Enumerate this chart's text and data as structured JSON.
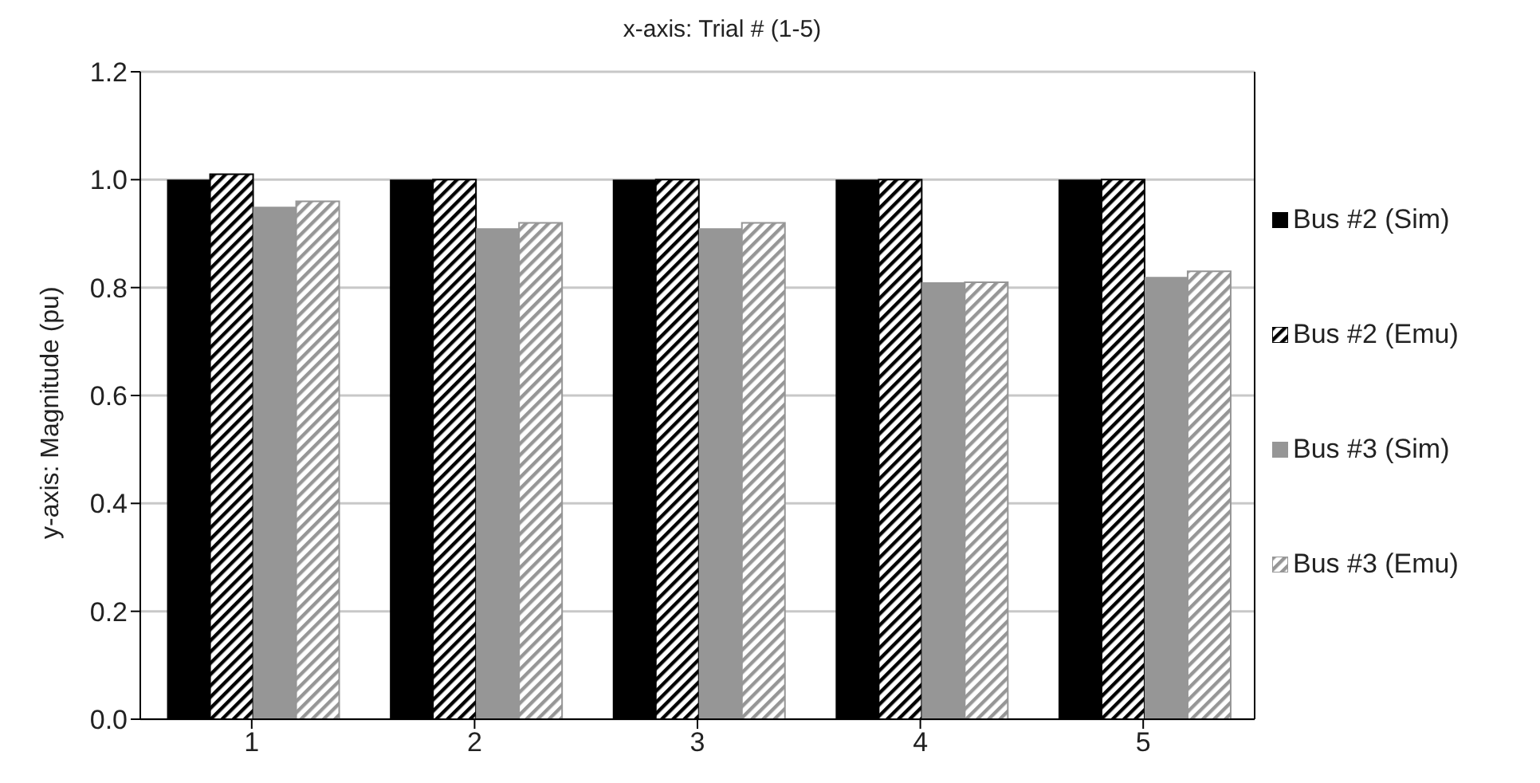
{
  "chart_data": {
    "type": "bar",
    "title": "x-axis: Trial # (1-5)",
    "ylabel": "y-axis: Magnitude (pu)",
    "categories": [
      "1",
      "2",
      "3",
      "4",
      "5"
    ],
    "series": [
      {
        "name": "Bus #2 (Sim)",
        "color": "#000000",
        "values": [
          1.0,
          1.0,
          1.0,
          1.0,
          1.0
        ]
      },
      {
        "name": "Bus #2 (Emu)",
        "color": "#000000",
        "values": [
          1.01,
          1.0,
          1.0,
          1.0,
          1.0
        ]
      },
      {
        "name": "Bus #3 (Sim)",
        "color": "#969696",
        "values": [
          0.95,
          0.91,
          0.91,
          0.81,
          0.82
        ]
      },
      {
        "name": "Bus #3 (Emu)",
        "color": "#969696",
        "values": [
          0.96,
          0.92,
          0.92,
          0.81,
          0.83
        ]
      }
    ],
    "ylim": [
      0,
      1.2
    ],
    "yticks": [
      {
        "value": 0,
        "label": "0.0"
      },
      0.2,
      0.4,
      0.6,
      0.8,
      {
        "value": 1,
        "label": "1.0"
      },
      1.2
    ],
    "grid": "y",
    "legend": "right"
  }
}
